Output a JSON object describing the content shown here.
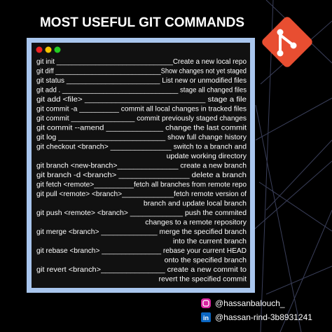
{
  "header": {
    "title": "MOST USEFUL GIT COMMANDS"
  },
  "commands": [
    {
      "text": "git init ______________________________Create a new local repo"
    },
    {
      "text": "git diff _____________________________Show changes not yet staged"
    },
    {
      "text": "git status ________________________ List new or unmodified files"
    },
    {
      "text": "git add  . _______________________________ stage all changed files"
    },
    {
      "text": "git add <file> ___________________________ stage a file"
    },
    {
      "text": "git commit -a __________ commit all local changes in tracked files"
    },
    {
      "text": "git commit ________________ commit previously staged changes"
    },
    {
      "text": "git commit --amend _____________ change the last commit"
    },
    {
      "text": "git log __________________________ show full change history"
    },
    {
      "text": "git checkout <branch> _______________ switch to a branch and",
      "continuation": "update working directory"
    },
    {
      "text": "git branch <new-branch>_______________ create a new branch"
    },
    {
      "text": "git branch -d <branch> ________________ delete a branch"
    },
    {
      "text": "git fetch <remote>__________fetch all branches from remote repo"
    },
    {
      "text": "git pull <remote> <branch>_____________fetch remote version of",
      "continuation": "branch and update local branch"
    },
    {
      "text": "git push <remote> <branch> _____________ push the commited",
      "continuation": "changes to a remote repository"
    },
    {
      "text": "git merge <branch> ______________ merge the specified branch",
      "continuation": "into the current branch"
    },
    {
      "text": "git rebase <branch> _______________ rebase your current HEAD",
      "continuation": "onto the specified branch"
    },
    {
      "text": "git revert <branch>_______________ create a new commit to",
      "continuation": "revert the specified commit"
    }
  ],
  "social": {
    "instagram": "@hassanbalouch_",
    "linkedin": "@hassan-rind-3b8931241"
  }
}
